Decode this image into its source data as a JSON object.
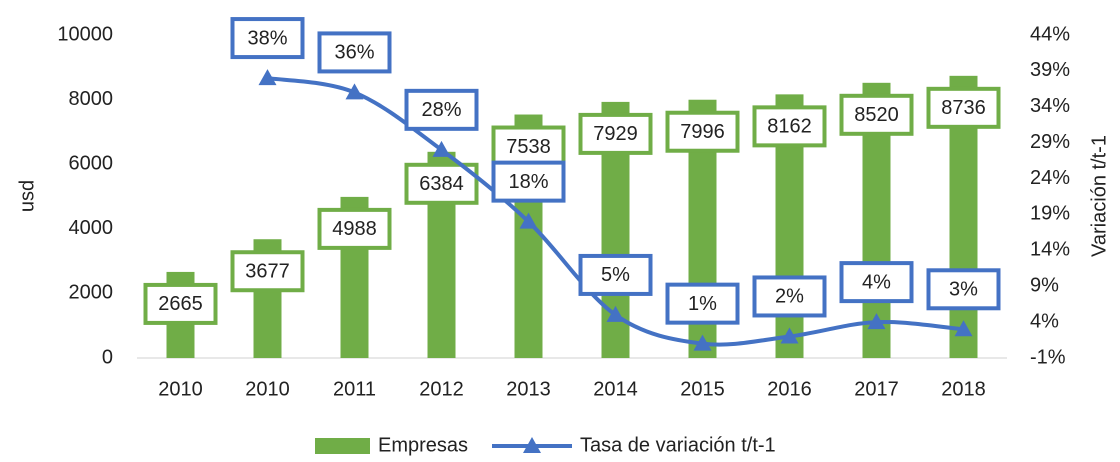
{
  "chart_data": {
    "type": "combo",
    "categories": [
      "2010",
      "2010",
      "2011",
      "2012",
      "2013",
      "2014",
      "2015",
      "2016",
      "2017",
      "2018"
    ],
    "series": [
      {
        "name": "Empresas",
        "type": "bar",
        "color": "#70ad47",
        "values": [
          2665,
          3677,
          4988,
          6384,
          7538,
          7929,
          7996,
          8162,
          8520,
          8736
        ]
      },
      {
        "name": "Tasa de variación t/t-1",
        "type": "line",
        "axis": "y2",
        "color": "#4472c4",
        "values": [
          null,
          38,
          36,
          28,
          18,
          5,
          1,
          2,
          4,
          3
        ],
        "value_labels": [
          null,
          "38%",
          "36%",
          "28%",
          "18%",
          "5%",
          "1%",
          "2%",
          "4%",
          "3%"
        ]
      }
    ],
    "ylabel": "usd",
    "y2label": "Variación t/t-1",
    "ylim": [
      0,
      10000
    ],
    "yticks": [
      0,
      2000,
      4000,
      6000,
      8000,
      10000
    ],
    "y2lim": [
      -1,
      44
    ],
    "y2ticks": [
      {
        "value": -1,
        "label": "-1%"
      },
      {
        "value": 4,
        "label": "4%"
      },
      {
        "value": 9,
        "label": "9%"
      },
      {
        "value": 14,
        "label": "14%"
      },
      {
        "value": 19,
        "label": "19%"
      },
      {
        "value": 24,
        "label": "24%"
      },
      {
        "value": 29,
        "label": "29%"
      },
      {
        "value": 34,
        "label": "34%"
      },
      {
        "value": 39,
        "label": "39%"
      },
      {
        "value": 44,
        "label": "44%"
      }
    ],
    "legend": "bottom"
  }
}
